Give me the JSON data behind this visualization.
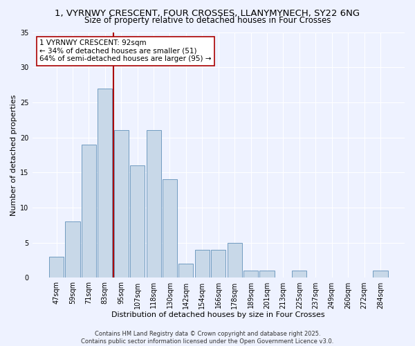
{
  "title_line1": "1, VYRNWY CRESCENT, FOUR CROSSES, LLANYMYNECH, SY22 6NG",
  "title_line2": "Size of property relative to detached houses in Four Crosses",
  "xlabel": "Distribution of detached houses by size in Four Crosses",
  "ylabel": "Number of detached properties",
  "categories": [
    "47sqm",
    "59sqm",
    "71sqm",
    "83sqm",
    "95sqm",
    "107sqm",
    "118sqm",
    "130sqm",
    "142sqm",
    "154sqm",
    "166sqm",
    "178sqm",
    "189sqm",
    "201sqm",
    "213sqm",
    "225sqm",
    "237sqm",
    "249sqm",
    "260sqm",
    "272sqm",
    "284sqm"
  ],
  "values": [
    3,
    8,
    19,
    27,
    21,
    16,
    21,
    14,
    2,
    4,
    4,
    5,
    1,
    1,
    0,
    1,
    0,
    0,
    0,
    0,
    1
  ],
  "bar_color": "#c8d8e8",
  "bar_edge_color": "#6090b8",
  "vline_color": "#aa0000",
  "annotation_text": "1 VYRNWY CRESCENT: 92sqm\n← 34% of detached houses are smaller (51)\n64% of semi-detached houses are larger (95) →",
  "annotation_box_color": "#ffffff",
  "annotation_box_edge": "#aa0000",
  "ylim": [
    0,
    35
  ],
  "yticks": [
    0,
    5,
    10,
    15,
    20,
    25,
    30,
    35
  ],
  "bg_color": "#eef2ff",
  "grid_color": "#ffffff",
  "footer_text": "Contains HM Land Registry data © Crown copyright and database right 2025.\nContains public sector information licensed under the Open Government Licence v3.0.",
  "title_fontsize": 9.5,
  "subtitle_fontsize": 8.5,
  "axis_label_fontsize": 8,
  "tick_fontsize": 7,
  "annotation_fontsize": 7.5,
  "footer_fontsize": 6
}
